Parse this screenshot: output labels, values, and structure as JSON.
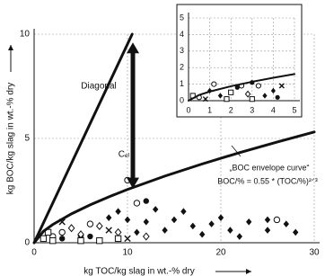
{
  "chart_data": [
    {
      "type": "scatter",
      "xlabel": "kg TOC/kg slag in wt.-% dry",
      "ylabel": "kg BOC/kg slag in wt.-% dry",
      "xlim": [
        0,
        30
      ],
      "ylim": [
        0,
        10
      ],
      "xticks": [
        0,
        10,
        20,
        30
      ],
      "yticks": [
        0,
        5,
        10
      ],
      "grid": true,
      "annotations": [
        "Diagonal",
        "Cₑₗ",
        "„BOC envelope curve“",
        "BOC/% = 0.55 * (TOC/%)²ᐟ³"
      ],
      "series": [
        {
          "style": "line",
          "color": "#111",
          "x": [
            0,
            10.5
          ],
          "values": [
            0,
            10
          ]
        },
        {
          "style": "line",
          "color": "#111",
          "x": [
            0,
            1,
            2,
            4,
            6,
            8,
            10,
            14,
            18,
            22,
            26,
            30
          ],
          "values": [
            0,
            0.55,
            0.873,
            1.386,
            1.816,
            2.2,
            2.553,
            3.195,
            3.777,
            4.319,
            4.827,
            5.31
          ]
        },
        {
          "style": "filled-diamond",
          "color": "#111",
          "x": [
            8,
            9,
            10,
            12,
            13,
            15,
            16,
            17,
            19,
            20,
            21,
            23,
            25,
            25,
            27,
            28,
            14,
            11,
            18,
            22
          ],
          "values": [
            1.2,
            1.5,
            1.1,
            1.0,
            1.6,
            1.1,
            1.5,
            0.8,
            0.9,
            1.2,
            0.6,
            1.0,
            1.1,
            0.6,
            0.9,
            0.5,
            0.6,
            0.5,
            0.4,
            0.3
          ]
        },
        {
          "style": "open-circle",
          "color": "#111",
          "x": [
            10,
            11,
            6,
            3,
            2,
            26
          ],
          "values": [
            3.0,
            1.9,
            0.9,
            0.5,
            0.3,
            1.1
          ]
        },
        {
          "style": "open-diamond",
          "color": "#111",
          "x": [
            7,
            9,
            5,
            12,
            4
          ],
          "values": [
            0.8,
            0.5,
            0.4,
            0.3,
            0.7
          ]
        },
        {
          "style": "cross",
          "color": "#111",
          "x": [
            8,
            5,
            3,
            10
          ],
          "values": [
            0.6,
            0.2,
            1.0,
            0.2
          ]
        },
        {
          "style": "open-square",
          "color": "#111",
          "x": [
            1,
            2,
            5,
            7,
            9,
            1.5
          ],
          "values": [
            0.2,
            0.1,
            0.1,
            0.1,
            0.2,
            0.5
          ]
        },
        {
          "style": "filled-circle",
          "color": "#111",
          "x": [
            12,
            6,
            3
          ],
          "values": [
            2.0,
            0.3,
            0.2
          ]
        }
      ]
    },
    {
      "type": "scatter",
      "xlim": [
        0,
        5
      ],
      "ylim": [
        0,
        5
      ],
      "xticks": [
        0,
        1,
        2,
        3,
        4,
        5
      ],
      "yticks": [
        0,
        1,
        2,
        3,
        4,
        5
      ],
      "grid": true,
      "series": [
        {
          "style": "line",
          "color": "#111",
          "x": [
            0,
            0.5,
            1,
            2,
            3,
            4,
            5
          ],
          "values": [
            0,
            0.346,
            0.55,
            0.873,
            1.144,
            1.386,
            1.608
          ]
        },
        {
          "style": "filled-diamond",
          "color": "#111",
          "x": [
            1,
            1.5,
            3.6,
            4
          ],
          "values": [
            0.6,
            0.3,
            0.3,
            0.6
          ]
        },
        {
          "style": "open-circle",
          "color": "#111",
          "x": [
            0.5,
            2.5,
            3.3,
            1.2
          ],
          "values": [
            0.2,
            0.9,
            0.9,
            1.0
          ]
        },
        {
          "style": "open-square",
          "color": "#111",
          "x": [
            0.2,
            2,
            3,
            1.8
          ],
          "values": [
            0.3,
            0.5,
            0.1,
            0.1
          ]
        },
        {
          "style": "filled-circle",
          "color": "#111",
          "x": [
            2.3,
            3,
            4.2
          ],
          "values": [
            0.8,
            1.1,
            0.2
          ]
        },
        {
          "style": "open-diamond",
          "color": "#111",
          "x": [
            2.8
          ],
          "values": [
            0.4
          ]
        },
        {
          "style": "cross",
          "color": "#111",
          "x": [
            4.4,
            0.8
          ],
          "values": [
            0.9,
            0.1
          ]
        }
      ]
    }
  ]
}
